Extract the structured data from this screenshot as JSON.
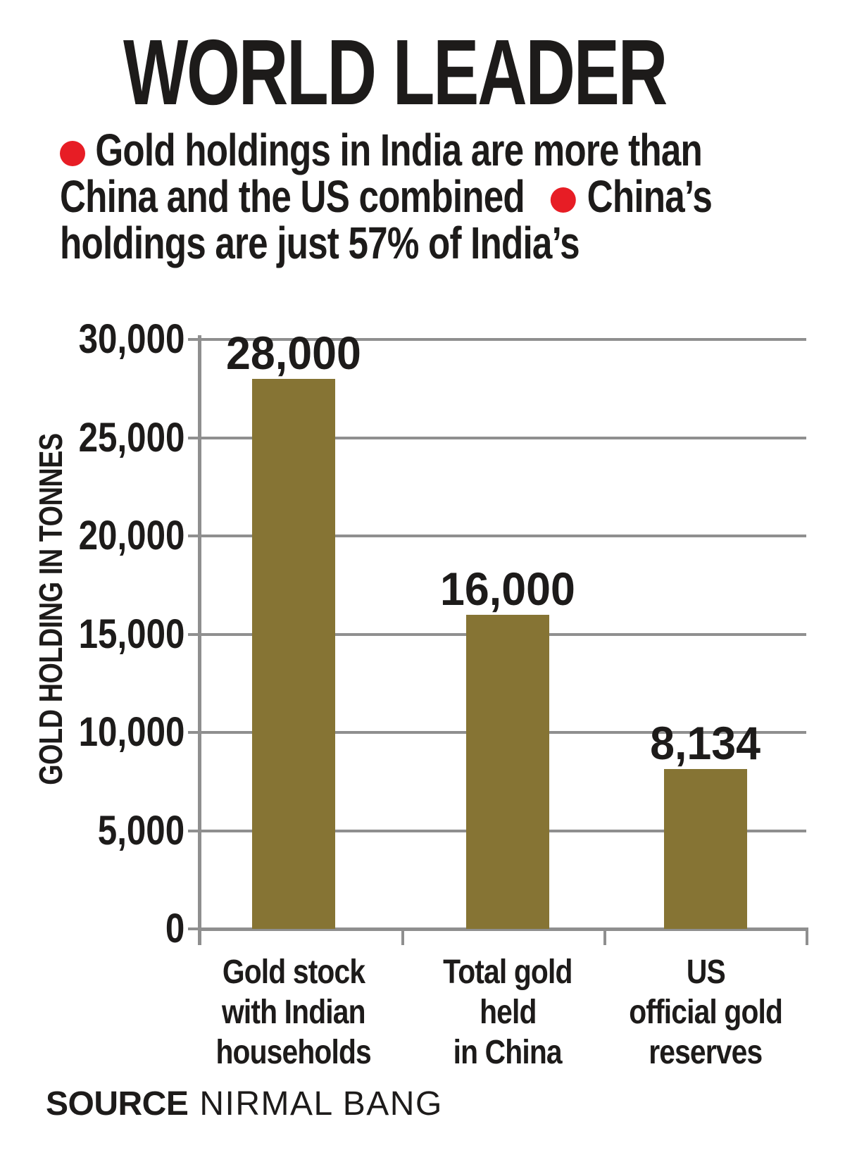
{
  "page": {
    "title": "WORLD LEADER",
    "intro": {
      "line1": "Gold holdings in India are more than",
      "line2a": "China and the US combined",
      "line2b": "China’s",
      "line3": "holdings are just 57% of India’s"
    },
    "source": {
      "label": "SOURCE",
      "value": "NIRMAL BANG"
    }
  },
  "chart_data": {
    "type": "bar",
    "title": "WORLD LEADER",
    "ylabel": "GOLD HOLDING IN TONNES",
    "xlabel": "",
    "categories": [
      "Gold stock with Indian households",
      "Total gold held in China",
      "US official gold reserves"
    ],
    "category_lines": [
      [
        "Gold stock",
        "with Indian",
        "households"
      ],
      [
        "Total gold",
        "held",
        "in China"
      ],
      [
        "US",
        "official gold",
        "reserves"
      ]
    ],
    "values": [
      28000,
      16000,
      8134
    ],
    "value_labels": [
      "28,000",
      "16,000",
      "8,134"
    ],
    "ylim": [
      0,
      30000
    ],
    "ytick_step": 5000,
    "ytick_labels": [
      "30,000",
      "25,000",
      "20,000",
      "15,000",
      "10,000",
      "5,000",
      "0"
    ],
    "grid": true,
    "legend_position": "none",
    "annotations": [
      "Gold holdings in India are more than China and the US combined",
      "China’s holdings are just 57% of India’s"
    ],
    "colors": {
      "bar": "#867434",
      "grid": "#8f8f8f",
      "text": "#1d1b1a",
      "bullet_red": "#e71d25",
      "background": "#ffffff"
    }
  }
}
